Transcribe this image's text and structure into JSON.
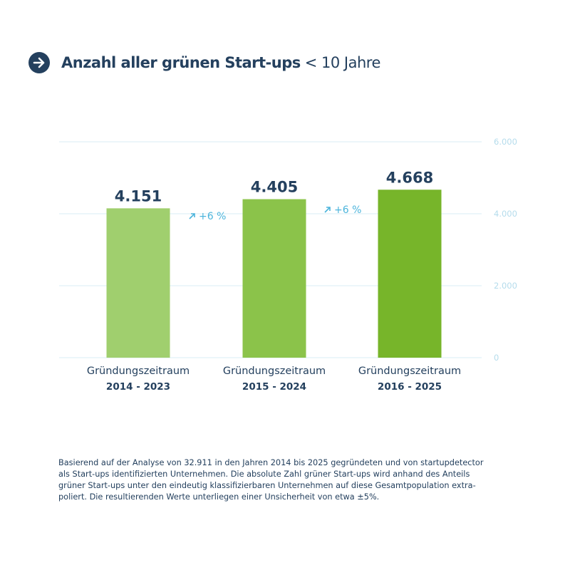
{
  "title": {
    "main": "Anzahl aller grünen Start-ups",
    "sub": "< 10 Jahre",
    "icon": "arrow-right-circle-icon"
  },
  "colors": {
    "text": "#24405e",
    "grid": "#d9eef5",
    "tick": "#b5dcec",
    "growth": "#4bb4dc",
    "bars": [
      "#a0cf6e",
      "#8bc34a",
      "#77b52a"
    ]
  },
  "chart_data": {
    "type": "bar",
    "categories": [
      [
        "Gründungszeitraum",
        "2014 - 2023"
      ],
      [
        "Gründungszeitraum",
        "2015 - 2024"
      ],
      [
        "Gründungszeitraum",
        "2016 - 2025"
      ]
    ],
    "values": [
      4151,
      4405,
      4668
    ],
    "value_labels": [
      "4.151",
      "4.405",
      "4.668"
    ],
    "growth_labels": [
      "+6 %",
      "+6 %"
    ],
    "ylim": [
      0,
      6000
    ],
    "yticks": [
      0,
      2000,
      4000,
      6000
    ],
    "ytick_labels": [
      "0",
      "2.000",
      "4.000",
      "6.000"
    ],
    "grid": true,
    "yaxis_position": "right"
  },
  "footnote": [
    "Basierend auf der Analyse von 32.911 in den Jahren 2014 bis 2025 gegründeten und von startupdetector",
    "als Start-ups identifizierten Unternehmen. Die absolute Zahl grüner Start-ups wird anhand des Anteils",
    "grüner Start-ups unter den eindeutig klassifizierbaren Unternehmen auf diese Gesamtpopulation extra-",
    "poliert. Die resultierenden Werte unterliegen einer Unsicherheit von etwa ±5%."
  ]
}
